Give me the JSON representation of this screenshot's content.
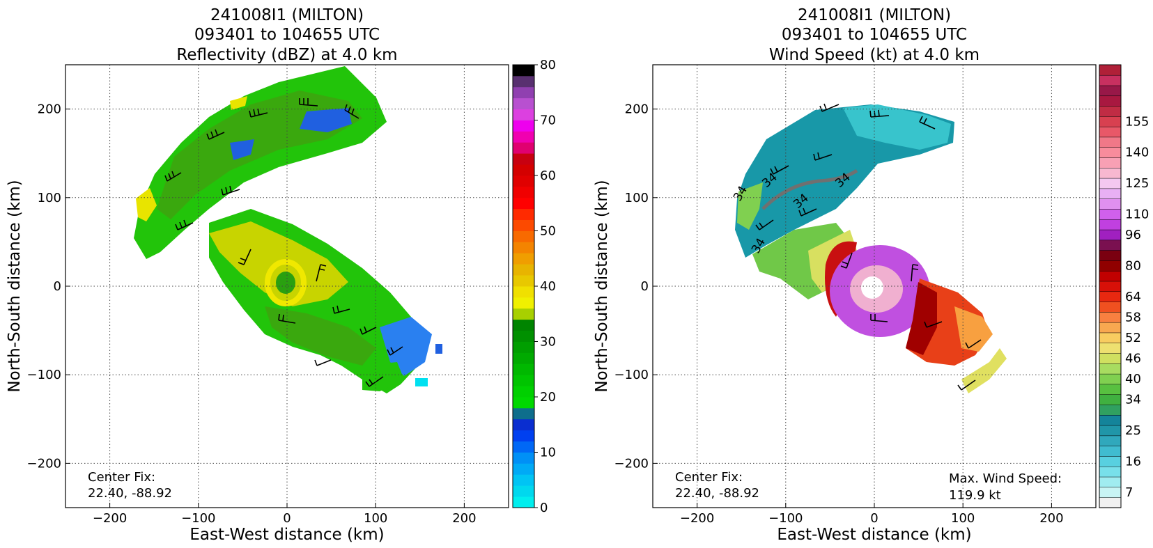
{
  "chart_data": [
    {
      "type": "heatmap",
      "title": [
        "241008I1 (MILTON)",
        "093401 to 104655 UTC",
        "Reflectivity (dBZ) at 4.0 km"
      ],
      "xlabel": "East-West distance (km)",
      "ylabel": "North-South distance (km)",
      "xlim": [
        -250,
        250
      ],
      "ylim": [
        -250,
        250
      ],
      "x_ticks": [
        -200,
        -100,
        0,
        100,
        200
      ],
      "y_ticks": [
        -200,
        -100,
        0,
        100,
        200
      ],
      "x_tick_labels": [
        "−200",
        "−100",
        "0",
        "100",
        "200"
      ],
      "y_tick_labels": [
        "−200",
        "−100",
        "0",
        "100",
        "200"
      ],
      "grid": "dotted",
      "annotations": [
        {
          "text": "Center Fix:",
          "corner": "bottom-left"
        },
        {
          "text": "22.40, -88.92",
          "corner": "bottom-left"
        }
      ],
      "colorbar": {
        "min": 0,
        "max": 80,
        "tick_values": [
          0,
          10,
          20,
          30,
          40,
          50,
          60,
          70,
          80
        ],
        "colors": [
          "#00eeee",
          "#00d8ee",
          "#00c4f4",
          "#00aaf6",
          "#0090f6",
          "#0068f6",
          "#0040f0",
          "#0a2ed0",
          "#0e6e8c",
          "#00d800",
          "#00d000",
          "#00c400",
          "#00b800",
          "#00aa00",
          "#009e00",
          "#009000",
          "#008400",
          "#a8d000",
          "#f0f000",
          "#f0e000",
          "#e8c800",
          "#e8b400",
          "#f09e00",
          "#f48400",
          "#f86a00",
          "#fc4a00",
          "#ff2a00",
          "#ff0000",
          "#f00000",
          "#e00000",
          "#d40000",
          "#c80010",
          "#e00070",
          "#f000b0",
          "#ee00ee",
          "#dc40e0",
          "#b850d0",
          "#9040b0",
          "#583070",
          "#000000"
        ]
      }
    },
    {
      "type": "heatmap",
      "title": [
        "241008I1 (MILTON)",
        "093401 to 104655 UTC",
        "Wind Speed (kt) at 4.0 km"
      ],
      "xlabel": "East-West distance (km)",
      "ylabel": "North-South distance (km)",
      "xlim": [
        -250,
        250
      ],
      "ylim": [
        -250,
        250
      ],
      "x_ticks": [
        -200,
        -100,
        0,
        100,
        200
      ],
      "y_ticks": [
        -200,
        -100,
        0,
        100,
        200
      ],
      "x_tick_labels": [
        "−200",
        "−100",
        "0",
        "100",
        "200"
      ],
      "y_tick_labels": [
        "−200",
        "−100",
        "0",
        "100",
        "200"
      ],
      "grid": "dotted",
      "contour_labels": [
        "34",
        "34",
        "34",
        "34",
        "34"
      ],
      "annotations": [
        {
          "text": "Center Fix:",
          "corner": "bottom-left"
        },
        {
          "text": "22.40, -88.92",
          "corner": "bottom-left"
        },
        {
          "text": "Max. Wind Speed:",
          "corner": "bottom-right"
        },
        {
          "text": "119.9 kt",
          "corner": "bottom-right"
        }
      ],
      "max_wind_speed_kt": 119.9,
      "colorbar": {
        "tick_labels": [
          "7",
          "16",
          "25",
          "34",
          "40",
          "46",
          "52",
          "58",
          "64",
          "80",
          "96",
          "110",
          "125",
          "140",
          "155"
        ],
        "tick_levels": [
          1,
          4,
          7,
          10,
          12,
          14,
          16,
          18,
          20,
          23,
          26,
          28,
          31,
          34,
          37
        ],
        "colors": [
          "#f0f0f0",
          "#c8f4f4",
          "#a0ecf0",
          "#78e0ea",
          "#58d0e0",
          "#40bcd0",
          "#30a8bc",
          "#2096a8",
          "#14849a",
          "#30a060",
          "#40b040",
          "#58c040",
          "#80d050",
          "#a8dc60",
          "#d0e060",
          "#eee070",
          "#f8cc60",
          "#f8a850",
          "#f88040",
          "#f05020",
          "#e82810",
          "#d81008",
          "#c00000",
          "#900000",
          "#7a0010",
          "#7a1050",
          "#a020c0",
          "#c040e0",
          "#d060ec",
          "#e090f0",
          "#e8b0f4",
          "#f4c8f0",
          "#f8b8d0",
          "#f8a0b4",
          "#f88c9c",
          "#f07888",
          "#e85868",
          "#d84050",
          "#c02c44",
          "#a81840",
          "#981848",
          "#c83060",
          "#b02038"
        ]
      }
    }
  ]
}
